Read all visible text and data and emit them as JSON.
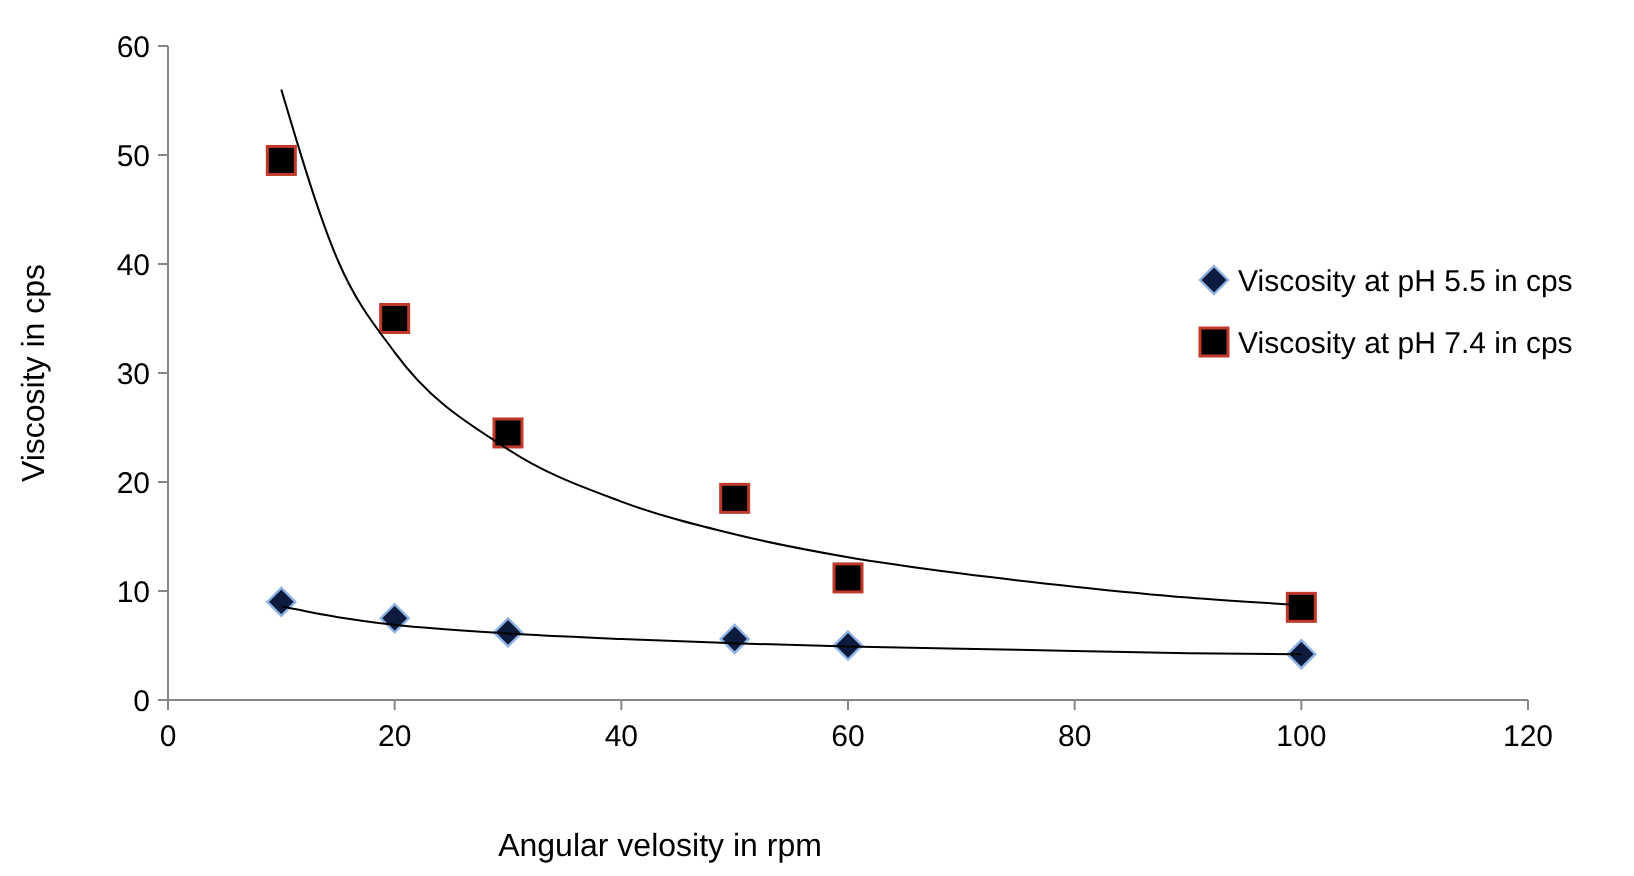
{
  "chart_data": {
    "type": "scatter",
    "xlabel": "Angular  velosity  in rpm",
    "ylabel": "Viscosity in cps",
    "xlim": [
      0,
      120
    ],
    "xticks": [
      0,
      20,
      40,
      60,
      80,
      100,
      120
    ],
    "ylim": [
      0,
      60
    ],
    "yticks": [
      0,
      10,
      20,
      30,
      40,
      50,
      60
    ],
    "grid": false,
    "legend": "right",
    "series": [
      {
        "name": "Viscosity at pH 5.5 in cps",
        "color": "#0d1b3e",
        "marker": "diamond",
        "x": [
          10,
          20,
          30,
          50,
          60,
          100
        ],
        "values": [
          9,
          7.5,
          6.2,
          5.6,
          5,
          4.2
        ]
      },
      {
        "name": "Viscosity at pH 7.4 in cps",
        "color": "#000000",
        "marker": "square",
        "x": [
          10,
          20,
          30,
          50,
          60,
          100
        ],
        "values": [
          49.5,
          35,
          24.5,
          18.5,
          11.2,
          8.5
        ]
      },
      {
        "type": "line",
        "color": "#000000",
        "marker": "none",
        "x": [
          10,
          15,
          20,
          30,
          40,
          50,
          60,
          70,
          80,
          90,
          100
        ],
        "values": [
          8.6,
          7.6,
          6.9,
          6.1,
          5.6,
          5.2,
          4.9,
          4.7,
          4.5,
          4.3,
          4.2
        ]
      },
      {
        "type": "line",
        "color": "#000000",
        "marker": "none",
        "x": [
          10,
          15,
          20,
          30,
          40,
          50,
          60,
          70,
          80,
          90,
          100
        ],
        "values": [
          56,
          40.3,
          31.9,
          23,
          18.2,
          15.2,
          13.1,
          11.6,
          10.4,
          9.4,
          8.7
        ]
      }
    ]
  }
}
